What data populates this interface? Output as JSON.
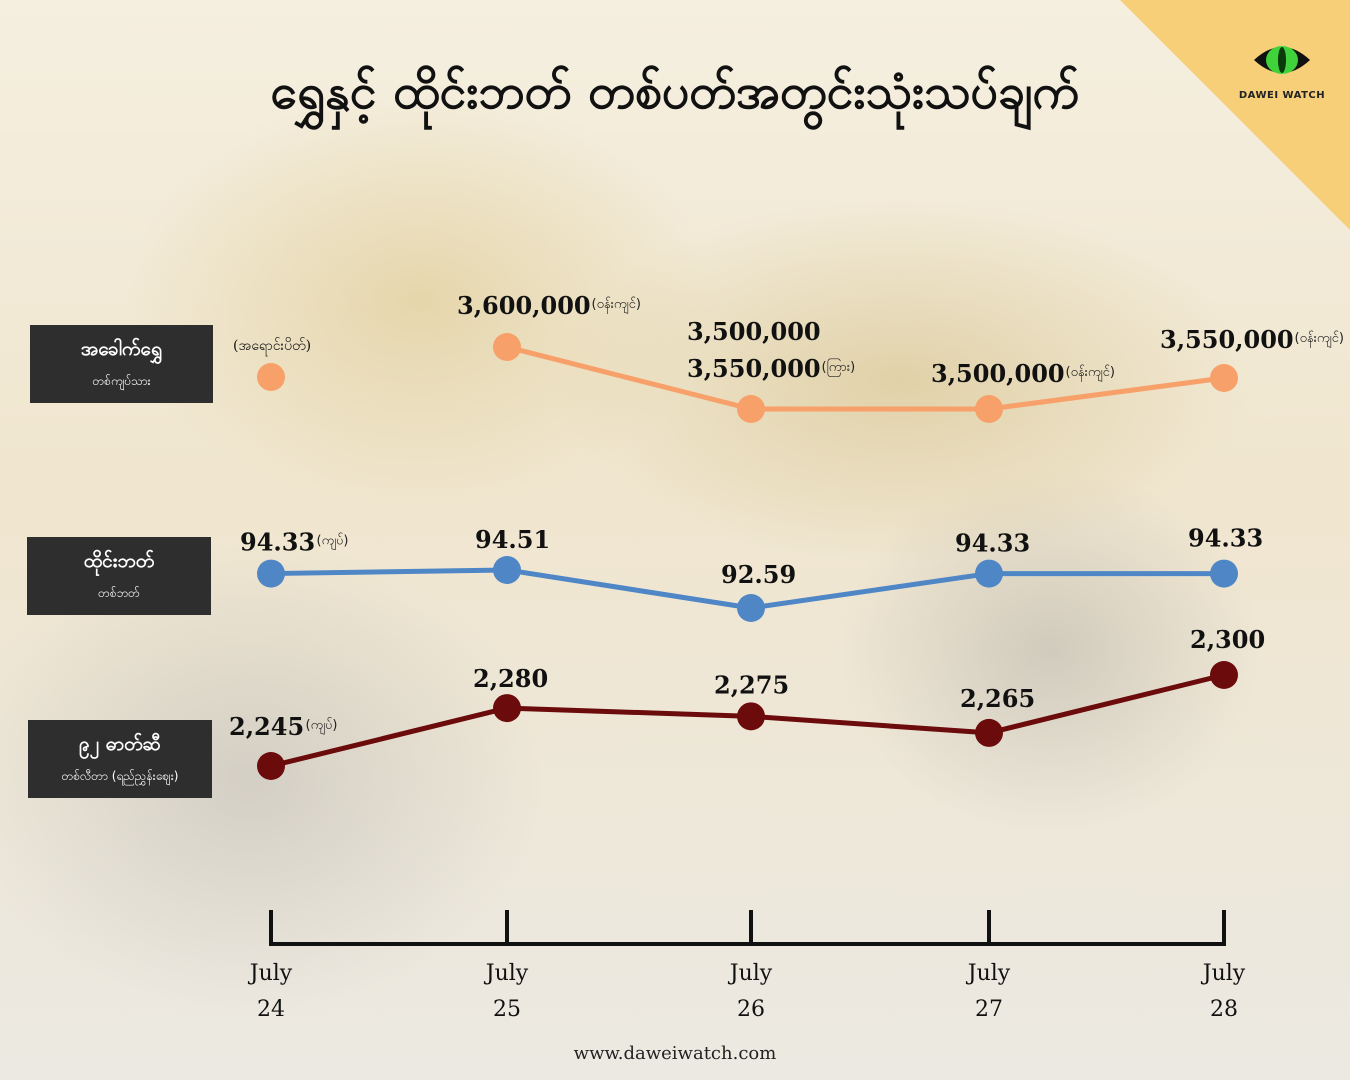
{
  "title": "ရွှေနှင့် ထိုင်းဘတ် တစ်ပတ်အတွင်းသုံးသပ်ချက်",
  "brand": "DAWEI WATCH",
  "footer": "www.daweiwatch.com",
  "colors": {
    "gold": "#f7a06a",
    "baht": "#4f86c6",
    "fuel": "#6b0b0b",
    "label_bg": "#2e2e2e",
    "corner": "#f7cf78"
  },
  "rows": [
    {
      "name": "အခေါက်ရွှေ",
      "sub": "တစ်ကျပ်သား"
    },
    {
      "name": "ထိုင်းဘတ်",
      "sub": "တစ်ဘတ်"
    },
    {
      "name": "၉၂ ဓာတ်ဆီ",
      "sub": "တစ်လီတာ (ရည်ညွှန်းဈေး)"
    }
  ],
  "chart_data": {
    "type": "line",
    "categories": [
      [
        "July",
        "24"
      ],
      [
        "July",
        "25"
      ],
      [
        "July",
        "26"
      ],
      [
        "July",
        "27"
      ],
      [
        "July",
        "28"
      ]
    ],
    "series": [
      {
        "name": "အခေါက်ရွှေ",
        "color": "#f7a06a",
        "values": [
          null,
          3600000,
          3500000,
          3500000,
          3550000
        ],
        "labels": [
          {
            "lines": [
              "(အရောင်းပိတ်)"
            ],
            "note": ""
          },
          {
            "lines": [
              "3,600,000"
            ],
            "note": "(ဝန်းကျင်)"
          },
          {
            "lines": [
              "3,500,000",
              "3,550,000"
            ],
            "note": "(ကြား)"
          },
          {
            "lines": [
              "3,500,000"
            ],
            "note": "(ဝန်းကျင်)"
          },
          {
            "lines": [
              "3,550,000"
            ],
            "note": "(ဝန်းကျင်)"
          }
        ]
      },
      {
        "name": "ထိုင်းဘတ်",
        "color": "#4f86c6",
        "values": [
          94.33,
          94.51,
          92.59,
          94.33,
          94.33
        ],
        "labels": [
          {
            "lines": [
              "94.33"
            ],
            "note": "(ကျပ်)"
          },
          {
            "lines": [
              "94.51"
            ],
            "note": ""
          },
          {
            "lines": [
              "92.59"
            ],
            "note": ""
          },
          {
            "lines": [
              "94.33"
            ],
            "note": ""
          },
          {
            "lines": [
              "94.33"
            ],
            "note": ""
          }
        ]
      },
      {
        "name": "၉၂ ဓာတ်ဆီ",
        "color": "#6b0b0b",
        "values": [
          2245,
          2280,
          2275,
          2265,
          2300
        ],
        "labels": [
          {
            "lines": [
              "2,245"
            ],
            "note": "(ကျပ်)"
          },
          {
            "lines": [
              "2,280"
            ],
            "note": ""
          },
          {
            "lines": [
              "2,275"
            ],
            "note": ""
          },
          {
            "lines": [
              "2,265"
            ],
            "note": ""
          },
          {
            "lines": [
              "2,300"
            ],
            "note": ""
          }
        ]
      }
    ]
  }
}
